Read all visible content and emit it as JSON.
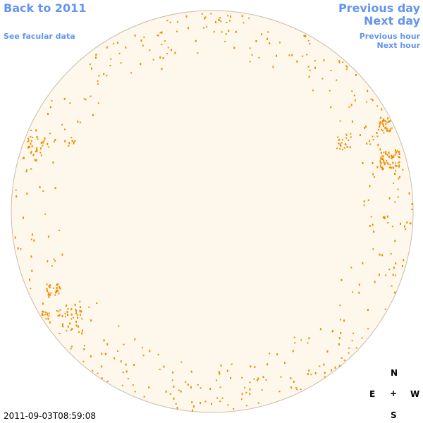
{
  "nav": {
    "back_to_year": "Back to 2011",
    "see_facular": "See facular data",
    "previous_day": "Previous day",
    "next_day": "Next day",
    "previous_hour": "Previous hour",
    "next_hour": "Next hour"
  },
  "compass": {
    "north": "N",
    "south": "S",
    "east": "E",
    "west": "W",
    "center": "+"
  },
  "timestamp": "2011-09-03T08:59:08",
  "colors": {
    "disk_fill": "#fef8ec",
    "disk_edge": "#c8bca8",
    "facula": "#f08c00",
    "link": "#6495ed"
  }
}
